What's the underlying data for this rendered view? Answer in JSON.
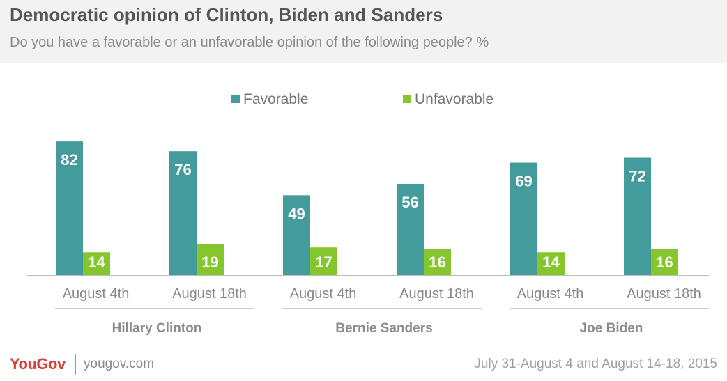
{
  "header": {
    "title": "Democratic opinion of Clinton, Biden and Sanders",
    "subtitle": "Do you have a favorable or an unfavorable opinion of the following people? %"
  },
  "footer": {
    "logo": "YouGov",
    "site": "yougov.com",
    "dates": "July 31-August 4 and August 14-18, 2015"
  },
  "chart_data": {
    "type": "bar",
    "groups": [
      "Hillary Clinton",
      "Bernie Sanders",
      "Joe Biden"
    ],
    "categories": [
      "August 4th",
      "August 18th",
      "August 4th",
      "August 18th",
      "August 4th",
      "August 18th"
    ],
    "series": [
      {
        "name": "Favorable",
        "color": "#449b9c",
        "values": [
          82,
          76,
          49,
          56,
          69,
          72
        ]
      },
      {
        "name": "Unfavorable",
        "color": "#86c62d",
        "values": [
          14,
          19,
          17,
          16,
          14,
          16
        ]
      }
    ],
    "ylim": [
      0,
      100
    ],
    "legend_position": "top-center",
    "grid": false
  }
}
